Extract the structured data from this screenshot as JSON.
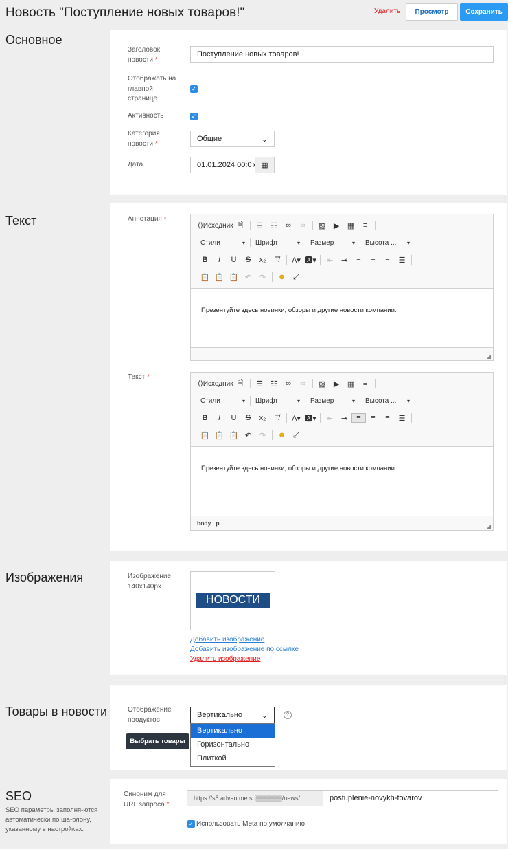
{
  "header": {
    "title": "Новость \"Поступление новых товаров!\"",
    "delete": "Удалить",
    "preview": "Просмотр",
    "save": "Сохранить"
  },
  "basic": {
    "section": "Основное",
    "title_label": "Заголовок новости",
    "title_value": "Поступление новых товаров!",
    "main_label": "Отображать на главной странице",
    "main_checked": true,
    "active_label": "Активность",
    "active_checked": true,
    "category_label": "Категория новости",
    "category_value": "Общие",
    "date_label": "Дата",
    "date_value": "01.01.2024 00:0"
  },
  "text": {
    "section": "Текст",
    "annotation_label": "Аннотация",
    "text_label": "Текст",
    "toolbar": {
      "source": "Исходник",
      "styles": "Стили",
      "font": "Шрифт",
      "size": "Размер",
      "height": "Высота ..."
    },
    "annotation_content": "Презентуйте здесь новинки, обзоры и другие новости компании.",
    "text_content": "Презентуйте здесь новинки, обзоры и другие новости компании.",
    "path": [
      "body",
      "p"
    ]
  },
  "images": {
    "section": "Изображения",
    "label": "Изображение 140x140px",
    "banner": "НОВОСТИ",
    "add": "Добавить изображение",
    "add_url": "Добавить изображение по ссылке",
    "remove": "Удалить изображение"
  },
  "products": {
    "section": "Товары в новости",
    "label": "Отображение продуктов",
    "value": "Вертикально",
    "options": [
      "Вертикально",
      "Горизонтально",
      "Плиткой"
    ],
    "choose": "Выбрать товары"
  },
  "seo": {
    "section": "SEO",
    "description": "SEO параметры заполня-ются автоматически по ша-блону, указанному в настройках.",
    "url_label": "Синоним для URL запроса",
    "prefix": "https://s5.advantme.su▒▒▒▒▒▒/news/",
    "slug": "postuplenie-novykh-tovarov",
    "meta_label": "Использовать Meta по умолчанию",
    "meta_checked": true
  },
  "colors": {
    "primary": "#2b9af3",
    "danger": "#e02020",
    "link": "#2b7fd1",
    "dark_button": "#2d3640",
    "banner": "#1f4e87"
  }
}
